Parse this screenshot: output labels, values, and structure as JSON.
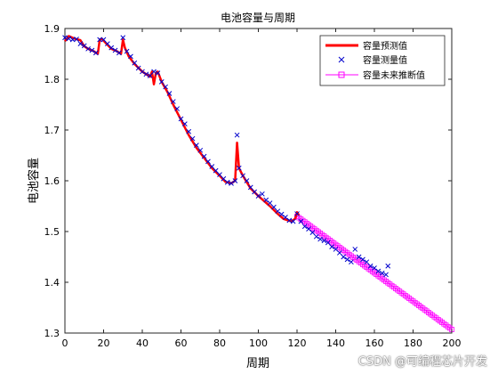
{
  "watermark": "CSDN @可编程芯片开发",
  "chart_data": {
    "type": "line",
    "title": "电池容量与周期",
    "xlabel": "周期",
    "ylabel": "电池容量",
    "xlim": [
      0,
      200
    ],
    "ylim": [
      1.3,
      1.9
    ],
    "xticks": [
      "0",
      "20",
      "40",
      "60",
      "80",
      "100",
      "120",
      "140",
      "160",
      "180",
      "200"
    ],
    "yticks": [
      "1.3",
      "1.4",
      "1.5",
      "1.6",
      "1.7",
      "1.8",
      "1.9"
    ],
    "grid": false,
    "legend_position": "top-right",
    "colors": {
      "predicted": "#ff0000",
      "measured": "#0000cc",
      "future": "#ff00ff"
    },
    "series": [
      {
        "name": "容量预测值",
        "style": "line",
        "x": [
          0,
          2,
          5,
          8,
          10,
          12,
          15,
          17,
          18,
          19,
          21,
          24,
          27,
          29,
          30,
          31,
          33,
          36,
          40,
          44,
          45,
          46,
          47,
          48,
          50,
          53,
          56,
          60,
          64,
          68,
          72,
          76,
          80,
          83,
          86,
          88,
          89,
          90,
          92,
          96,
          100,
          103,
          106,
          110,
          113,
          117,
          119,
          120,
          121
        ],
        "y": [
          1.875,
          1.885,
          1.88,
          1.877,
          1.865,
          1.86,
          1.855,
          1.85,
          1.878,
          1.88,
          1.872,
          1.86,
          1.855,
          1.85,
          1.878,
          1.862,
          1.845,
          1.83,
          1.815,
          1.805,
          1.815,
          1.79,
          1.812,
          1.815,
          1.795,
          1.775,
          1.75,
          1.72,
          1.69,
          1.665,
          1.645,
          1.625,
          1.61,
          1.598,
          1.595,
          1.6,
          1.675,
          1.625,
          1.61,
          1.585,
          1.57,
          1.56,
          1.55,
          1.535,
          1.525,
          1.52,
          1.525,
          1.538,
          1.532
        ]
      },
      {
        "name": "容量测量值",
        "style": "markers-x",
        "x": [
          0,
          2,
          4,
          6,
          8,
          10,
          12,
          14,
          16,
          18,
          20,
          22,
          24,
          26,
          28,
          30,
          32,
          34,
          36,
          38,
          40,
          42,
          44,
          46,
          48,
          50,
          52,
          54,
          56,
          58,
          60,
          62,
          64,
          66,
          68,
          70,
          72,
          74,
          76,
          78,
          80,
          82,
          84,
          86,
          88,
          89,
          90,
          92,
          94,
          96,
          98,
          100,
          102,
          104,
          106,
          108,
          110,
          112,
          114,
          116,
          118,
          120,
          122,
          124,
          126,
          128,
          130,
          132,
          134,
          136,
          138,
          140,
          142,
          144,
          146,
          148,
          150,
          152,
          154,
          156,
          158,
          160,
          162,
          164,
          166,
          167
        ],
        "y": [
          1.882,
          1.88,
          1.878,
          1.879,
          1.87,
          1.866,
          1.86,
          1.857,
          1.852,
          1.878,
          1.878,
          1.87,
          1.862,
          1.857,
          1.852,
          1.882,
          1.855,
          1.845,
          1.832,
          1.822,
          1.815,
          1.81,
          1.807,
          1.815,
          1.812,
          1.795,
          1.785,
          1.772,
          1.756,
          1.742,
          1.722,
          1.712,
          1.697,
          1.683,
          1.67,
          1.66,
          1.648,
          1.638,
          1.628,
          1.62,
          1.612,
          1.604,
          1.597,
          1.595,
          1.6,
          1.69,
          1.625,
          1.61,
          1.6,
          1.587,
          1.578,
          1.57,
          1.574,
          1.562,
          1.556,
          1.548,
          1.54,
          1.534,
          1.528,
          1.522,
          1.52,
          1.535,
          1.52,
          1.51,
          1.505,
          1.498,
          1.49,
          1.485,
          1.482,
          1.478,
          1.47,
          1.465,
          1.458,
          1.45,
          1.445,
          1.44,
          1.465,
          1.45,
          1.445,
          1.44,
          1.432,
          1.428,
          1.422,
          1.418,
          1.415,
          1.432
        ]
      },
      {
        "name": "容量未来推断值",
        "style": "line-markers-square",
        "x": [
          120,
          200
        ],
        "y": [
          1.53,
          1.307
        ]
      }
    ]
  }
}
